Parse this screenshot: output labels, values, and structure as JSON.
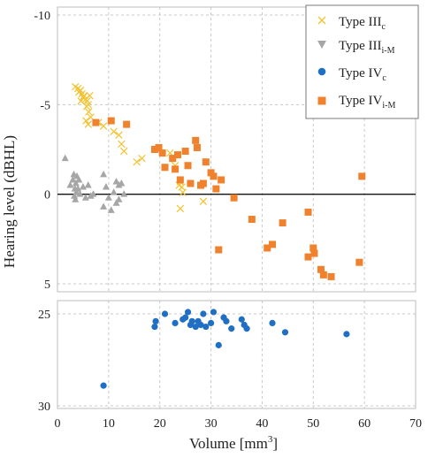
{
  "chart_data": {
    "type": "scatter",
    "xlabel": "Volume [mm",
    "xlabel_sup": "3",
    "xlabel_end": "]",
    "ylabel": "Hearing level (dBHL)",
    "xlim": [
      0,
      70
    ],
    "x_ticks": [
      "0",
      "10",
      "20",
      "30",
      "40",
      "50",
      "60",
      "70"
    ],
    "upper_panel": {
      "ylim": [
        -10,
        5
      ],
      "inverted": true,
      "y_ticks": [
        "-10",
        "-5",
        "0",
        "5"
      ]
    },
    "lower_panel": {
      "ylim": [
        25,
        30
      ],
      "inverted": true,
      "y_ticks": [
        "25",
        "30"
      ]
    },
    "legend": {
      "position": "top-right",
      "items": [
        {
          "main": "Type III",
          "sub": "c"
        },
        {
          "main": "Type III",
          "sub": "i-M"
        },
        {
          "main": "Type IV",
          "sub": "c"
        },
        {
          "main": "Type IV",
          "sub": "i-M"
        }
      ]
    },
    "series": [
      {
        "name": "Type IIIc",
        "marker": "x",
        "color": "#f2c230",
        "panel": "upper",
        "points": [
          [
            3.5,
            -6.0
          ],
          [
            4.0,
            -5.9
          ],
          [
            4.2,
            -5.7
          ],
          [
            4.5,
            -5.8
          ],
          [
            4.8,
            -5.6
          ],
          [
            5.0,
            -5.4
          ],
          [
            5.2,
            -5.5
          ],
          [
            5.5,
            -5.3
          ],
          [
            5.8,
            -5.2
          ],
          [
            6.0,
            -5.0
          ],
          [
            6.3,
            -5.5
          ],
          [
            4.6,
            -5.2
          ],
          [
            5.7,
            -4.9
          ],
          [
            6.1,
            -4.6
          ],
          [
            6.5,
            -4.3
          ],
          [
            5.6,
            -4.1
          ],
          [
            6.0,
            -3.9
          ],
          [
            8.0,
            -4.0
          ],
          [
            9.0,
            -3.8
          ],
          [
            11.0,
            -3.5
          ],
          [
            12.0,
            -3.3
          ],
          [
            12.5,
            -2.8
          ],
          [
            13.0,
            -2.4
          ],
          [
            15.5,
            -1.8
          ],
          [
            16.5,
            -2.0
          ],
          [
            19.5,
            -2.5
          ],
          [
            22.0,
            -2.3
          ],
          [
            23.0,
            -1.6
          ],
          [
            24.0,
            -0.7
          ],
          [
            24.3,
            -0.4
          ],
          [
            24.5,
            -0.1
          ],
          [
            24.0,
            0.8
          ],
          [
            28.5,
            0.4
          ],
          [
            23.8,
            -0.5
          ]
        ]
      },
      {
        "name": "Type IIIi-M",
        "marker": "triangle",
        "color": "#a6a6a6",
        "panel": "upper",
        "points": [
          [
            1.5,
            -2.0
          ],
          [
            2.5,
            -0.5
          ],
          [
            3.0,
            -0.8
          ],
          [
            3.2,
            -1.1
          ],
          [
            3.4,
            -0.3
          ],
          [
            3.6,
            -0.6
          ],
          [
            3.8,
            -1.0
          ],
          [
            4.0,
            -0.3
          ],
          [
            4.2,
            -0.8
          ],
          [
            3.3,
            0.1
          ],
          [
            3.7,
            -0.1
          ],
          [
            4.4,
            0.0
          ],
          [
            5.0,
            -0.4
          ],
          [
            5.5,
            0.2
          ],
          [
            6.0,
            -0.5
          ],
          [
            6.5,
            0.1
          ],
          [
            7.0,
            0.0
          ],
          [
            9.0,
            -1.1
          ],
          [
            9.5,
            -0.4
          ],
          [
            10.0,
            0.2
          ],
          [
            9.0,
            0.7
          ],
          [
            10.5,
            0.9
          ],
          [
            11.5,
            0.5
          ],
          [
            11.0,
            -0.1
          ],
          [
            11.5,
            -0.7
          ],
          [
            12.0,
            -0.5
          ],
          [
            12.5,
            -0.6
          ],
          [
            13.0,
            0.0
          ],
          [
            12.0,
            0.3
          ],
          [
            3.5,
            0.3
          ]
        ]
      },
      {
        "name": "Type IVc",
        "marker": "circle",
        "color": "#1f6fc5",
        "panel": "lower",
        "points": [
          [
            9.0,
            28.9
          ],
          [
            19.0,
            25.7
          ],
          [
            19.2,
            25.4
          ],
          [
            21.0,
            25.0
          ],
          [
            23.0,
            25.5
          ],
          [
            24.5,
            25.3
          ],
          [
            25.0,
            25.2
          ],
          [
            25.5,
            24.9
          ],
          [
            26.0,
            25.6
          ],
          [
            26.3,
            25.4
          ],
          [
            27.0,
            25.7
          ],
          [
            27.5,
            25.4
          ],
          [
            28.0,
            25.6
          ],
          [
            28.5,
            25.0
          ],
          [
            29.0,
            25.7
          ],
          [
            30.0,
            25.5
          ],
          [
            30.5,
            24.9
          ],
          [
            31.5,
            26.7
          ],
          [
            32.5,
            25.2
          ],
          [
            33.0,
            25.4
          ],
          [
            34.0,
            25.8
          ],
          [
            36.0,
            25.3
          ],
          [
            36.5,
            25.6
          ],
          [
            37.0,
            25.8
          ],
          [
            42.0,
            25.5
          ],
          [
            44.5,
            26.0
          ],
          [
            56.5,
            26.1
          ]
        ]
      },
      {
        "name": "Type IVi-M",
        "marker": "square",
        "color": "#f0822e",
        "panel": "upper",
        "points": [
          [
            7.5,
            -4.0
          ],
          [
            10.5,
            -4.1
          ],
          [
            13.5,
            -3.9
          ],
          [
            19.0,
            -2.5
          ],
          [
            19.8,
            -2.6
          ],
          [
            20.5,
            -2.3
          ],
          [
            21.0,
            -1.5
          ],
          [
            22.5,
            -2.0
          ],
          [
            23.0,
            -1.4
          ],
          [
            23.5,
            -2.2
          ],
          [
            24.0,
            -0.8
          ],
          [
            25.0,
            -2.4
          ],
          [
            25.5,
            -1.6
          ],
          [
            26.0,
            -0.6
          ],
          [
            27.0,
            -3.0
          ],
          [
            27.3,
            -2.6
          ],
          [
            28.0,
            -0.5
          ],
          [
            28.5,
            -0.6
          ],
          [
            29.0,
            -1.8
          ],
          [
            30.0,
            -1.2
          ],
          [
            30.5,
            -1.0
          ],
          [
            31.0,
            -0.3
          ],
          [
            32.0,
            -0.8
          ],
          [
            34.5,
            0.2
          ],
          [
            31.5,
            3.1
          ],
          [
            38.0,
            1.4
          ],
          [
            41.0,
            3.0
          ],
          [
            42.0,
            2.8
          ],
          [
            44.0,
            1.6
          ],
          [
            49.0,
            1.0
          ],
          [
            49.0,
            3.5
          ],
          [
            50.0,
            3.0
          ],
          [
            50.2,
            3.3
          ],
          [
            51.5,
            4.2
          ],
          [
            52.0,
            4.5
          ],
          [
            53.5,
            4.6
          ],
          [
            59.0,
            3.8
          ],
          [
            59.5,
            -1.0
          ]
        ]
      }
    ]
  }
}
